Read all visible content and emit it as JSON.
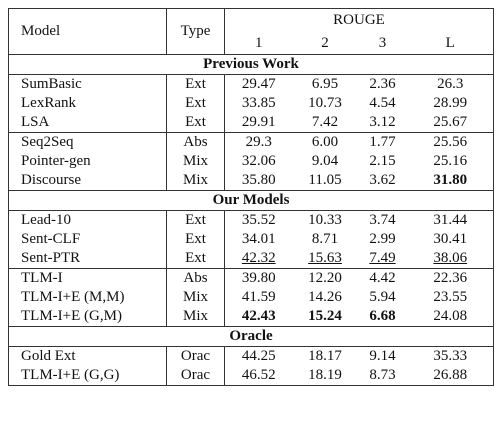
{
  "header": {
    "model": "Model",
    "type": "Type",
    "group": "ROUGE",
    "columns": [
      "1",
      "2",
      "3",
      "L"
    ]
  },
  "sections": [
    {
      "title": "Previous Work",
      "groups": [
        [
          {
            "model": "SumBasic",
            "type": "Ext",
            "scores": [
              "29.47",
              "6.95",
              "2.36",
              "26.3"
            ]
          },
          {
            "model": "LexRank",
            "type": "Ext",
            "scores": [
              "33.85",
              "10.73",
              "4.54",
              "28.99"
            ]
          },
          {
            "model": "LSA",
            "type": "Ext",
            "scores": [
              "29.91",
              "7.42",
              "3.12",
              "25.67"
            ]
          }
        ],
        [
          {
            "model": "Seq2Seq",
            "type": "Abs",
            "scores": [
              "29.3",
              "6.00",
              "1.77",
              "25.56"
            ]
          },
          {
            "model": "Pointer-gen",
            "type": "Mix",
            "scores": [
              "32.06",
              "9.04",
              "2.15",
              "25.16"
            ]
          },
          {
            "model": "Discourse",
            "type": "Mix",
            "scores": [
              "35.80",
              "11.05",
              "3.62",
              "31.80"
            ],
            "bold": [
              3
            ]
          }
        ]
      ]
    },
    {
      "title": "Our Models",
      "groups": [
        [
          {
            "model": "Lead-10",
            "type": "Ext",
            "scores": [
              "35.52",
              "10.33",
              "3.74",
              "31.44"
            ]
          },
          {
            "model": "Sent-CLF",
            "type": "Ext",
            "scores": [
              "34.01",
              "8.71",
              "2.99",
              "30.41"
            ]
          },
          {
            "model": "Sent-PTR",
            "type": "Ext",
            "scores": [
              "42.32",
              "15.63",
              "7.49",
              "38.06"
            ],
            "underline": [
              0,
              1,
              2,
              3
            ]
          }
        ],
        [
          {
            "model": "TLM-I",
            "type": "Abs",
            "scores": [
              "39.80",
              "12.20",
              "4.42",
              "22.36"
            ]
          },
          {
            "model": "TLM-I+E (M,M)",
            "type": "Mix",
            "scores": [
              "41.59",
              "14.26",
              "5.94",
              "23.55"
            ]
          },
          {
            "model": "TLM-I+E (G,M)",
            "type": "Mix",
            "scores": [
              "42.43",
              "15.24",
              "6.68",
              "24.08"
            ],
            "bold": [
              0,
              1,
              2
            ]
          }
        ]
      ]
    },
    {
      "title": "Oracle",
      "groups": [
        [
          {
            "model": "Gold Ext",
            "type": "Orac",
            "scores": [
              "44.25",
              "18.17",
              "9.14",
              "35.33"
            ]
          },
          {
            "model": "TLM-I+E (G,G)",
            "type": "Orac",
            "scores": [
              "46.52",
              "18.19",
              "8.73",
              "26.88"
            ]
          }
        ]
      ]
    }
  ]
}
